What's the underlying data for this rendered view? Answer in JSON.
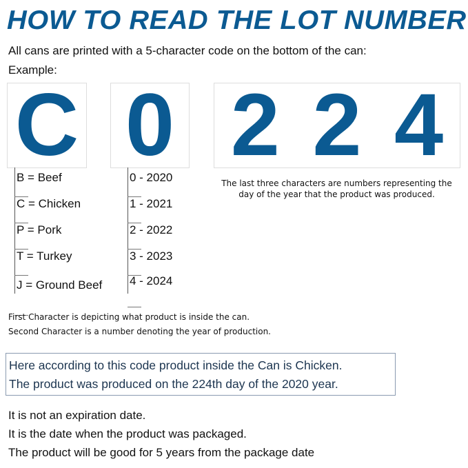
{
  "title": "HOW TO READ THE LOT NUMBER",
  "subtitle": "All cans are printed with a 5-character code on the bottom of the can:",
  "example_label": "Example:",
  "code": {
    "first": "C",
    "second": "0",
    "last": [
      "2",
      "2",
      "4"
    ]
  },
  "product_codes": [
    "B = Beef",
    "C = Chicken",
    "P = Pork",
    "T = Turkey",
    "J = Ground Beef"
  ],
  "year_codes": [
    "0 - 2020",
    "1 - 2021",
    "2 - 2022",
    "3 - 2023",
    "4 - 2024"
  ],
  "last_three_note": "The last three characters are numbers representing the day of the year that the product was produced.",
  "explanations": [
    "First Character is depicting what product is inside the can.",
    "Second Character is a number denoting  the year of production."
  ],
  "verdict": [
    "Here according to this code product inside the Can is Chicken.",
    "The product was produced on the 224th day of the 2020 year."
  ],
  "footer": [
    "It is not an expiration date.",
    "It is the date when the product was packaged.",
    "The product will be good  for 5 years from the package date"
  ],
  "colors": {
    "accent": "#0b5a92",
    "verdict_text": "#1c3550"
  }
}
